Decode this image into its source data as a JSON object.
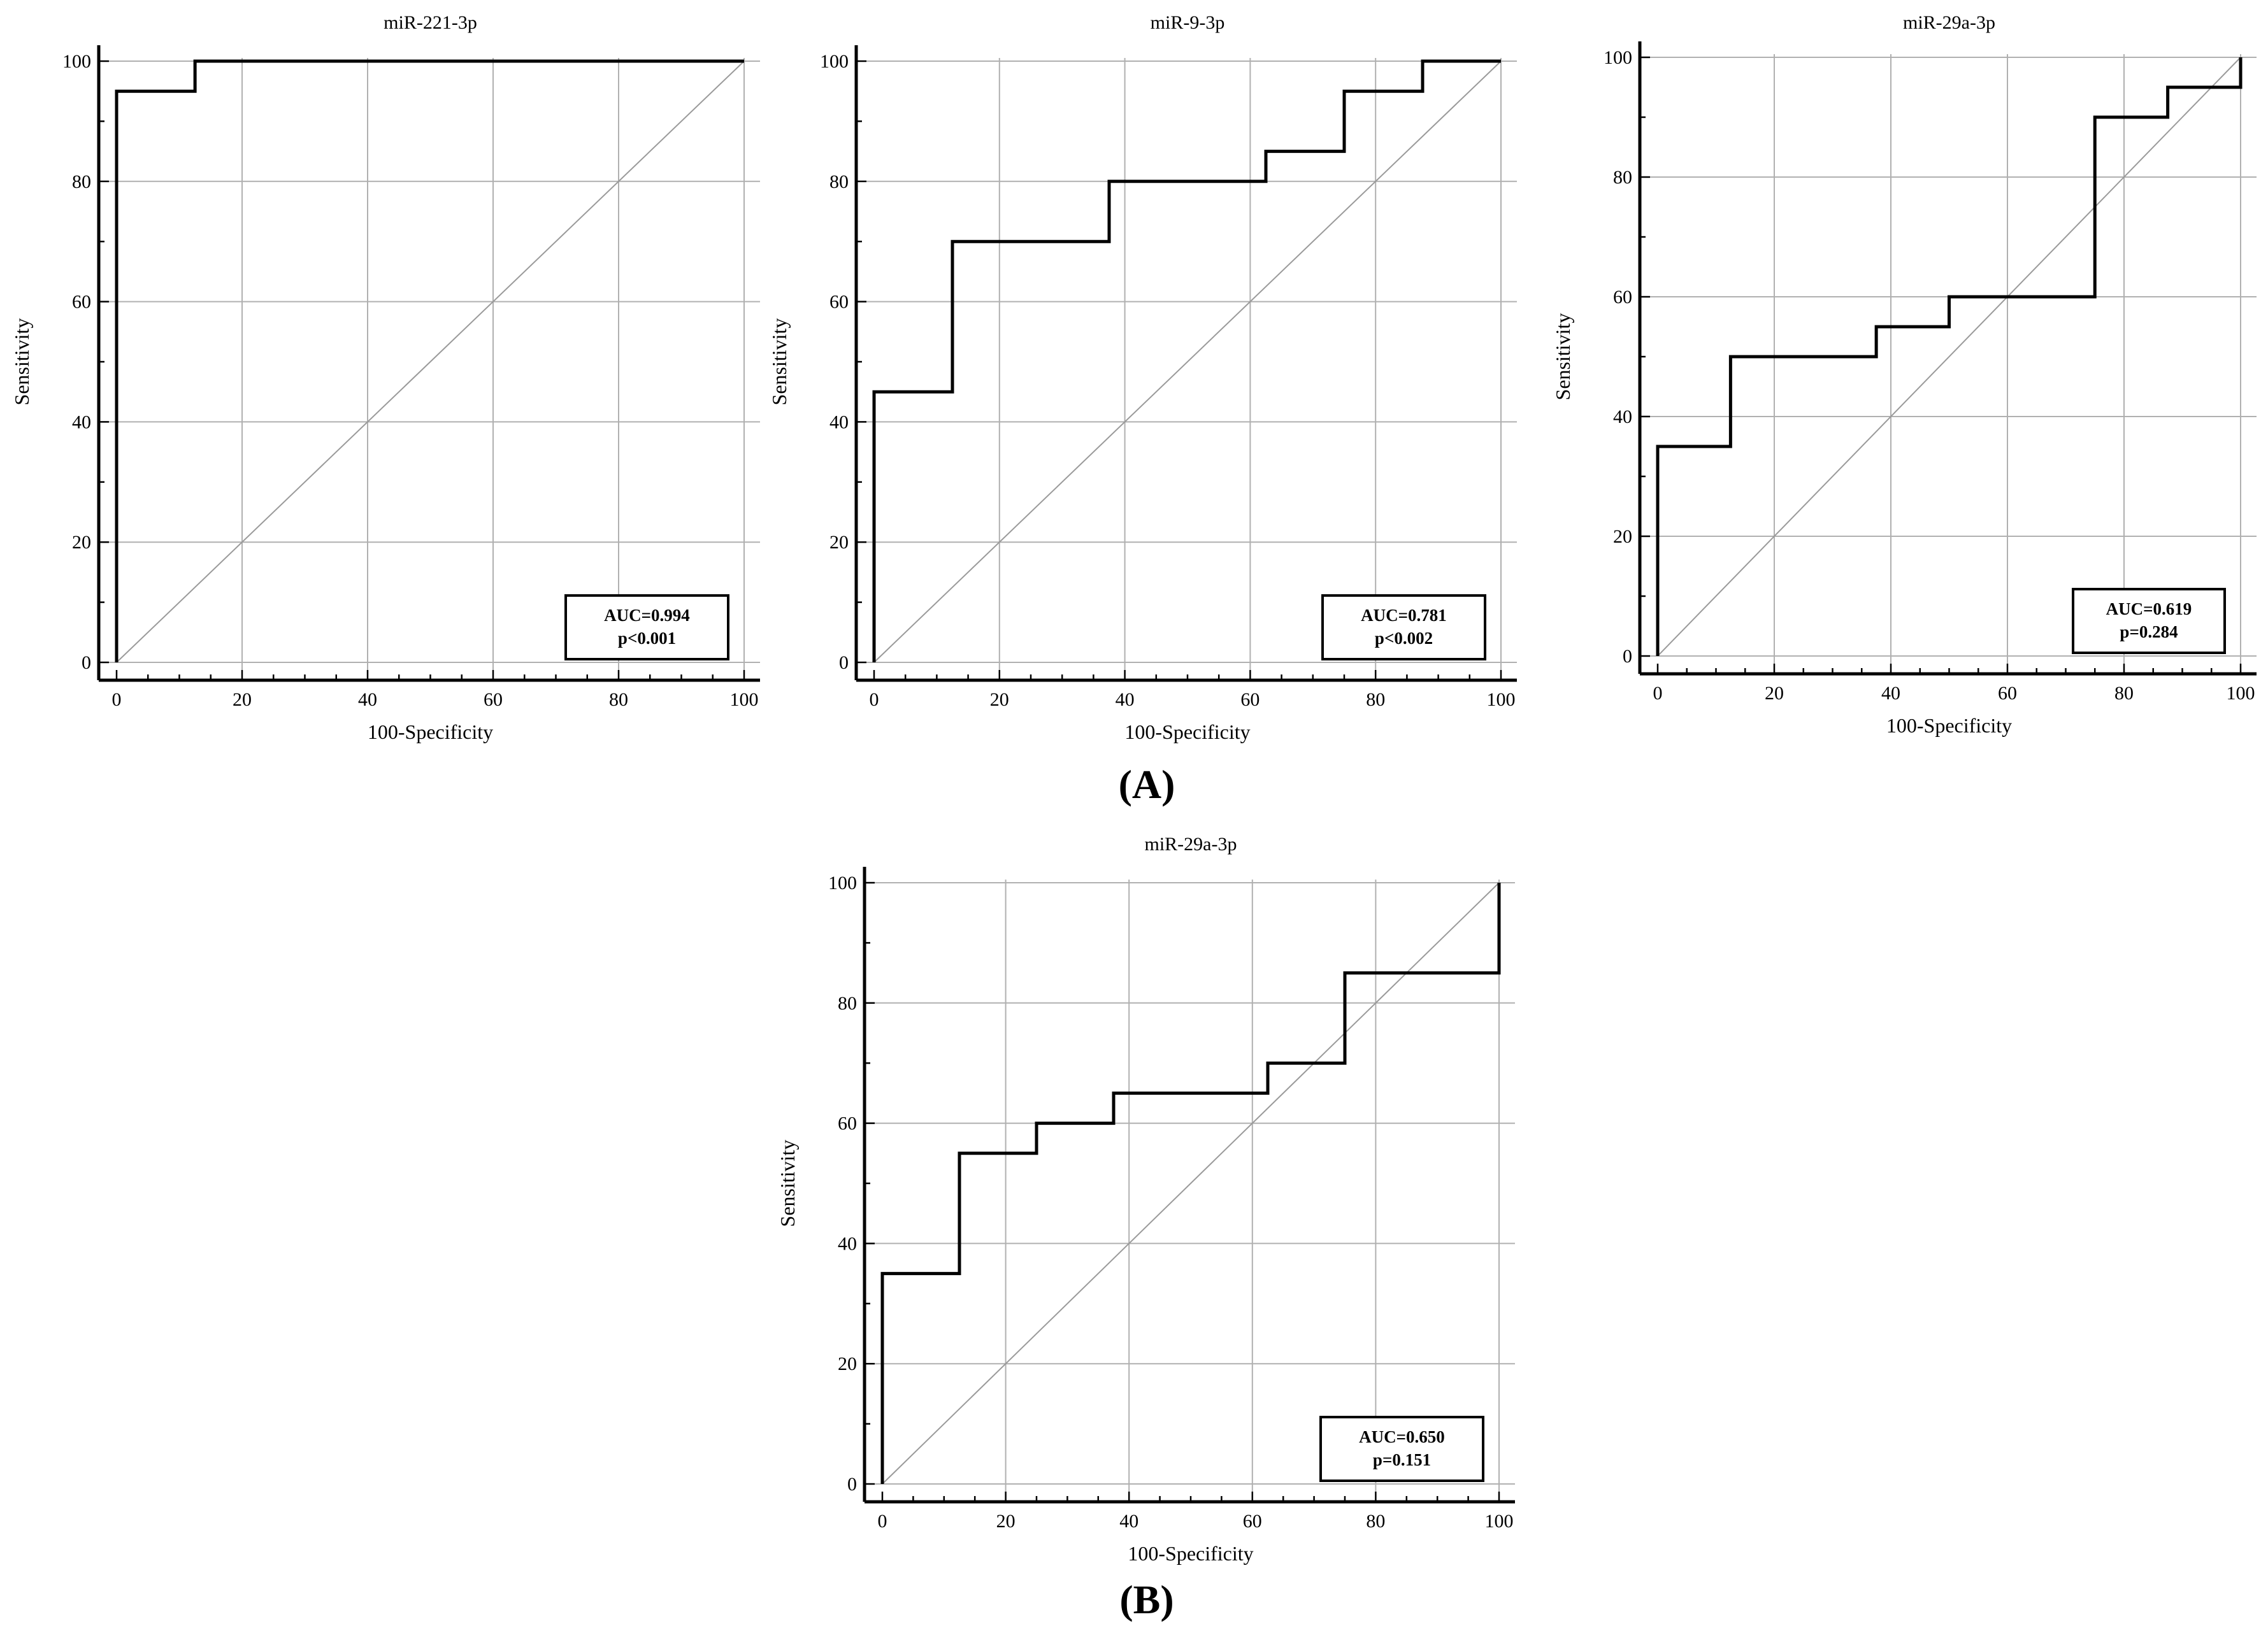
{
  "panels": {
    "A": "(A)",
    "B": "(B)"
  },
  "chart_data": [
    {
      "type": "line",
      "title": "miR-221-3p",
      "xlabel": "100-Specificity",
      "ylabel": "Sensitivity",
      "xlim": [
        0,
        100
      ],
      "ylim": [
        0,
        100
      ],
      "xticks": [
        0,
        20,
        40,
        60,
        80,
        100
      ],
      "yticks": [
        0,
        20,
        40,
        60,
        80,
        100
      ],
      "grid": true,
      "series": [
        {
          "x": [
            0,
            0,
            12.5,
            12.5,
            100
          ],
          "y": [
            0,
            95,
            95,
            100,
            100
          ]
        }
      ],
      "reference_line": {
        "x": [
          0,
          100
        ],
        "y": [
          0,
          100
        ]
      },
      "annotation": [
        "AUC=0.994",
        "p<0.001"
      ],
      "annotation_position": "bottom-right"
    },
    {
      "type": "line",
      "title": "miR-9-3p",
      "xlabel": "100-Specificity",
      "ylabel": "Sensitivity",
      "xlim": [
        0,
        100
      ],
      "ylim": [
        0,
        100
      ],
      "xticks": [
        0,
        20,
        40,
        60,
        80,
        100
      ],
      "yticks": [
        0,
        20,
        40,
        60,
        80,
        100
      ],
      "grid": true,
      "series": [
        {
          "x": [
            0,
            0,
            12.5,
            12.5,
            37.5,
            37.5,
            62.5,
            62.5,
            75,
            75,
            87.5,
            87.5,
            100
          ],
          "y": [
            0,
            45,
            45,
            70,
            70,
            80,
            80,
            85,
            85,
            95,
            95,
            100,
            100
          ]
        }
      ],
      "reference_line": {
        "x": [
          0,
          100
        ],
        "y": [
          0,
          100
        ]
      },
      "annotation": [
        "AUC=0.781",
        "p<0.002"
      ],
      "annotation_position": "bottom-right"
    },
    {
      "type": "line",
      "title": "miR-29a-3p",
      "xlabel": "100-Specificity",
      "ylabel": "Sensitivity",
      "xlim": [
        0,
        100
      ],
      "ylim": [
        0,
        100
      ],
      "xticks": [
        0,
        20,
        40,
        60,
        80,
        100
      ],
      "yticks": [
        0,
        20,
        40,
        60,
        80,
        100
      ],
      "grid": true,
      "series": [
        {
          "x": [
            0,
            0,
            12.5,
            12.5,
            37.5,
            37.5,
            50,
            50,
            75,
            75,
            87.5,
            87.5,
            100,
            100
          ],
          "y": [
            0,
            35,
            35,
            50,
            50,
            55,
            55,
            60,
            60,
            90,
            90,
            95,
            95,
            100
          ]
        }
      ],
      "reference_line": {
        "x": [
          0,
          100
        ],
        "y": [
          0,
          100
        ]
      },
      "annotation": [
        "AUC=0.619",
        "p=0.284"
      ],
      "annotation_position": "bottom-right"
    },
    {
      "type": "line",
      "title": "miR-29a-3p",
      "xlabel": "100-Specificity",
      "ylabel": "Sensitivity",
      "xlim": [
        0,
        100
      ],
      "ylim": [
        0,
        100
      ],
      "xticks": [
        0,
        20,
        40,
        60,
        80,
        100
      ],
      "yticks": [
        0,
        20,
        40,
        60,
        80,
        100
      ],
      "grid": true,
      "series": [
        {
          "x": [
            0,
            0,
            12.5,
            12.5,
            25,
            25,
            37.5,
            37.5,
            62.5,
            62.5,
            75,
            75,
            100,
            100
          ],
          "y": [
            0,
            35,
            35,
            55,
            55,
            60,
            60,
            65,
            65,
            70,
            70,
            85,
            85,
            100
          ]
        }
      ],
      "reference_line": {
        "x": [
          0,
          100
        ],
        "y": [
          0,
          100
        ]
      },
      "annotation": [
        "AUC=0.650",
        "p=0.151"
      ],
      "annotation_position": "bottom-right"
    }
  ]
}
